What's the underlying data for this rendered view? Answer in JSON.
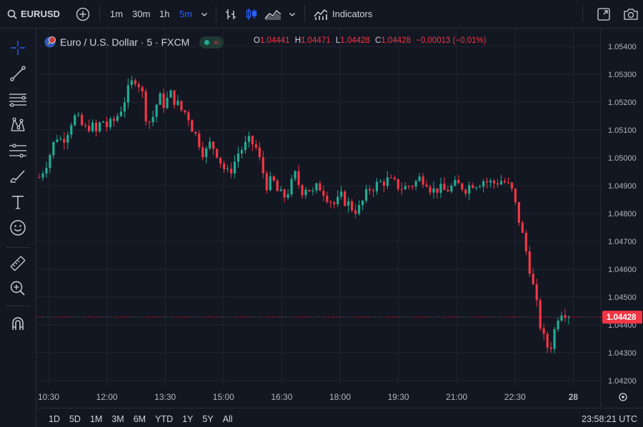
{
  "toolbar": {
    "symbol": "EURUSD",
    "intervals": [
      "1m",
      "30m",
      "1h",
      "5m"
    ],
    "active_interval": "5m",
    "indicators_label": "Indicators"
  },
  "legend": {
    "title": "Euro / U.S. Dollar · 5 · FXCM",
    "ohlc": {
      "o_label": "O",
      "o": "1.04441",
      "h_label": "H",
      "h": "1.04471",
      "l_label": "L",
      "l": "1.04428",
      "c_label": "C",
      "c": "1.04428",
      "change": "−0.00013 (−0.01%)"
    }
  },
  "chart_data": {
    "type": "candlestick",
    "x_ticks": [
      "10:30",
      "12:00",
      "13:30",
      "15:00",
      "16:30",
      "18:00",
      "19:30",
      "21:00",
      "22:30",
      "28"
    ],
    "y_ticks": [
      "1.05400",
      "1.05300",
      "1.05200",
      "1.05100",
      "1.05000",
      "1.04900",
      "1.04800",
      "1.04700",
      "1.04600",
      "1.04500",
      "1.04400",
      "1.04300",
      "1.04200"
    ],
    "ylim": [
      1.0418,
      1.0545
    ],
    "last_price": "1.04428",
    "last_price_value": 1.04428,
    "close_path": [
      1.0493,
      1.0497,
      1.0502,
      1.0508,
      1.0506,
      1.051,
      1.0515,
      1.0513,
      1.051,
      1.0512,
      1.0509,
      1.0514,
      1.0511,
      1.0513,
      1.0516,
      1.0521,
      1.0526,
      1.0529,
      1.0524,
      1.0512,
      1.0515,
      1.0522,
      1.0519,
      1.0523,
      1.052,
      1.0517,
      1.0516,
      1.051,
      1.0506,
      1.0501,
      1.0505,
      1.0503,
      1.0498,
      1.0494,
      1.0497,
      1.0502,
      1.0504,
      1.0506,
      1.0504,
      1.0497,
      1.049,
      1.0492,
      1.0487,
      1.0486,
      1.0489,
      1.0494,
      1.0488,
      1.049,
      1.0487,
      1.049,
      1.0488,
      1.0485,
      1.0483,
      1.0486,
      1.0484,
      1.0482,
      1.0481,
      1.0485,
      1.0489,
      1.049,
      1.0491,
      1.0492,
      1.0491,
      1.049,
      1.0489,
      1.049,
      1.0491,
      1.0493,
      1.0492,
      1.0488,
      1.0489,
      1.0488,
      1.0489,
      1.049,
      1.049,
      1.0489,
      1.0491,
      1.0491,
      1.0492,
      1.0491,
      1.0491,
      1.0492,
      1.0491,
      1.0488,
      1.048,
      1.0471,
      1.0462,
      1.0451,
      1.044,
      1.0432,
      1.0433,
      1.0443,
      1.0446,
      1.04428
    ]
  },
  "bottom": {
    "ranges": [
      "1D",
      "5D",
      "1M",
      "3M",
      "6M",
      "YTD",
      "1Y",
      "5Y",
      "All"
    ],
    "clock": "23:58:21 UTC"
  }
}
